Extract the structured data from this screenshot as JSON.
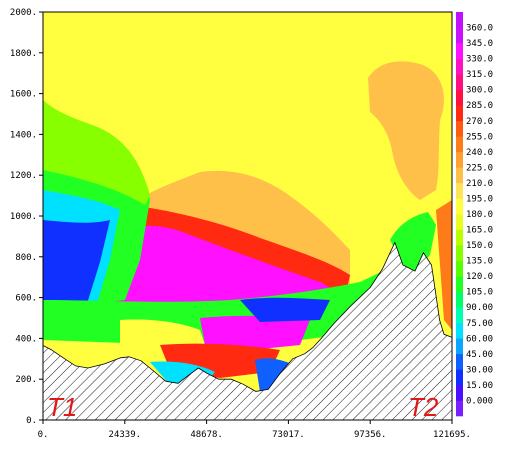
{
  "chart_data": {
    "type": "heatmap",
    "x_ticks": [
      "0.",
      "24339.",
      "48678.",
      "73017.",
      "97356.",
      "121695."
    ],
    "y_ticks": [
      "0.",
      "200.",
      "400.",
      "600.",
      "800.",
      "1000.",
      "1200.",
      "1400.",
      "1600.",
      "1800.",
      "2000."
    ],
    "xlim": [
      0,
      121695
    ],
    "ylim": [
      0,
      2000
    ],
    "colorbar": {
      "labels": [
        "0.000",
        "15.00",
        "30.00",
        "45.00",
        "60.00",
        "75.00",
        "90.00",
        "105.0",
        "120.0",
        "135.0",
        "150.0",
        "165.0",
        "180.0",
        "195.0",
        "210.0",
        "225.0",
        "240.0",
        "255.0",
        "270.0",
        "285.0",
        "300.0",
        "315.0",
        "330.0",
        "345.0",
        "360.0"
      ],
      "colors": [
        "#7a20ff",
        "#4a10ff",
        "#1030ff",
        "#1060ff",
        "#0aa6ff",
        "#00e0ff",
        "#00ffb0",
        "#00ff66",
        "#22ff22",
        "#55ff00",
        "#88ff00",
        "#b8ff00",
        "#e6ff20",
        "#ffff40",
        "#ffe45a",
        "#ffc04a",
        "#ffa030",
        "#ff7a18",
        "#ff5a10",
        "#ff2a10",
        "#ff1040",
        "#ff1080",
        "#ff10c0",
        "#ff10ff",
        "#cc10ff",
        "#c010ff"
      ]
    },
    "terrain_profile": [
      {
        "x": 0,
        "y": 365
      },
      {
        "x": 2400,
        "y": 345
      },
      {
        "x": 6000,
        "y": 305
      },
      {
        "x": 9700,
        "y": 265
      },
      {
        "x": 13400,
        "y": 255
      },
      {
        "x": 18300,
        "y": 275
      },
      {
        "x": 23100,
        "y": 305
      },
      {
        "x": 25600,
        "y": 310
      },
      {
        "x": 29200,
        "y": 290
      },
      {
        "x": 32900,
        "y": 240
      },
      {
        "x": 36500,
        "y": 190
      },
      {
        "x": 40200,
        "y": 180
      },
      {
        "x": 43800,
        "y": 225
      },
      {
        "x": 46200,
        "y": 255
      },
      {
        "x": 48700,
        "y": 230
      },
      {
        "x": 52300,
        "y": 200
      },
      {
        "x": 56000,
        "y": 200
      },
      {
        "x": 59600,
        "y": 175
      },
      {
        "x": 63300,
        "y": 140
      },
      {
        "x": 67000,
        "y": 150
      },
      {
        "x": 70600,
        "y": 230
      },
      {
        "x": 74300,
        "y": 300
      },
      {
        "x": 77900,
        "y": 325
      },
      {
        "x": 80300,
        "y": 355
      },
      {
        "x": 82800,
        "y": 400
      },
      {
        "x": 86400,
        "y": 470
      },
      {
        "x": 91300,
        "y": 555
      },
      {
        "x": 97400,
        "y": 650
      },
      {
        "x": 101000,
        "y": 740
      },
      {
        "x": 104700,
        "y": 870
      },
      {
        "x": 107100,
        "y": 760
      },
      {
        "x": 110700,
        "y": 730
      },
      {
        "x": 113200,
        "y": 820
      },
      {
        "x": 115600,
        "y": 760
      },
      {
        "x": 118000,
        "y": 490
      },
      {
        "x": 119300,
        "y": 420
      },
      {
        "x": 121695,
        "y": 405
      }
    ],
    "annotations": [
      "T1",
      "T2"
    ]
  },
  "annotations": {
    "left": "T1",
    "right": "T2"
  },
  "colors": {
    "terrain_hatch": "#000000",
    "annotation": "#e01818",
    "background_field": "#ffff40"
  }
}
